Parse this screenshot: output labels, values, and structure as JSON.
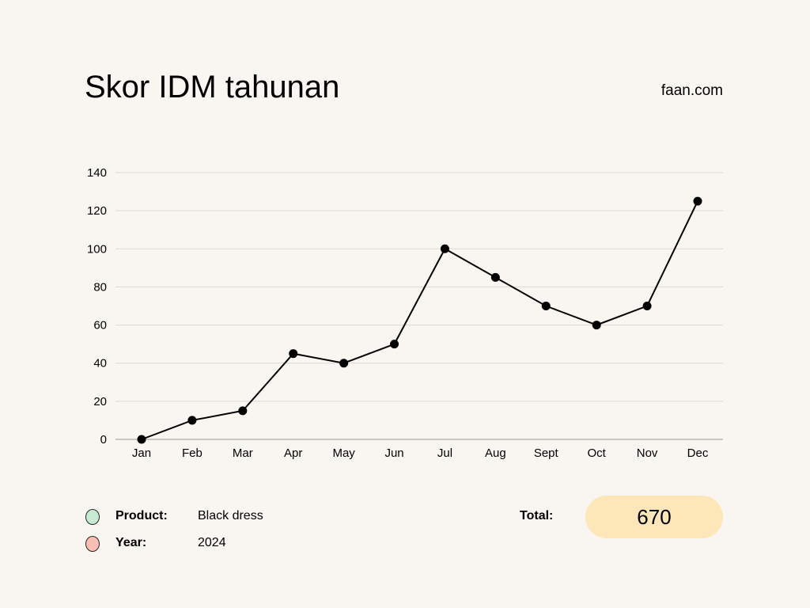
{
  "header": {
    "title": "Skor IDM tahunan",
    "site": "faan.com"
  },
  "chart_data": {
    "type": "line",
    "title": "Skor IDM tahunan",
    "categories": [
      "Jan",
      "Feb",
      "Mar",
      "Apr",
      "May",
      "Jun",
      "Jul",
      "Aug",
      "Sept",
      "Oct",
      "Nov",
      "Dec"
    ],
    "values": [
      0,
      10,
      15,
      45,
      40,
      50,
      100,
      85,
      70,
      60,
      70,
      125
    ],
    "yticks": [
      0,
      20,
      40,
      60,
      80,
      100,
      120,
      140
    ],
    "ylim": [
      0,
      140
    ],
    "xlabel": "",
    "ylabel": "",
    "grid": true
  },
  "legend": {
    "product_label": "Product:",
    "product_value": "Black dress",
    "product_color": "#c8ead2",
    "year_label": "Year:",
    "year_value": "2024",
    "year_color": "#f9bfb4"
  },
  "total": {
    "label": "Total:",
    "value": "670"
  }
}
